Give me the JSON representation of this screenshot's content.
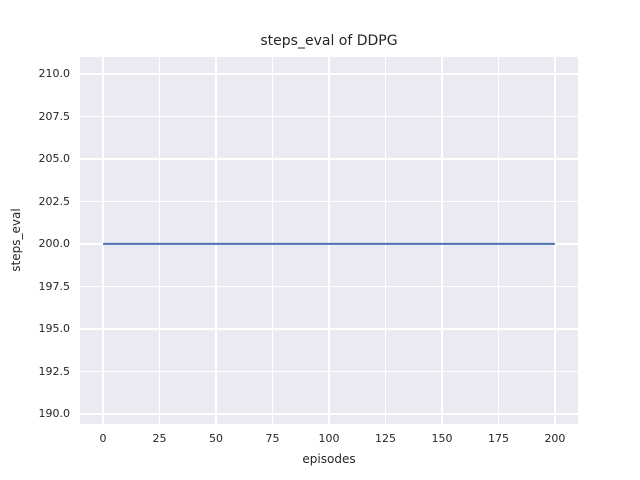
{
  "chart_data": {
    "type": "line",
    "title": "steps_eval of DDPG",
    "xlabel": "episodes",
    "ylabel": "steps_eval",
    "xlim": [
      -10.2,
      210.2
    ],
    "ylim": [
      189.4,
      211.0
    ],
    "xticks": [
      0,
      25,
      50,
      75,
      100,
      125,
      150,
      175,
      200
    ],
    "xticklabels": [
      "0",
      "25",
      "50",
      "75",
      "100",
      "125",
      "150",
      "175",
      "200"
    ],
    "yticks": [
      210.0,
      207.5,
      205.0,
      202.5,
      200.0,
      197.5,
      195.0,
      192.5,
      190.0
    ],
    "yticklabels": [
      "210.0",
      "207.5",
      "205.0",
      "202.5",
      "200.0",
      "197.5",
      "195.0",
      "192.5",
      "190.0"
    ],
    "grid": true,
    "legend": false,
    "plot_background_color": "#EAEAF2",
    "grid_color": "#FFFFFF",
    "figure_background_color": "#FFFFFF",
    "text_color": "#262626",
    "series": [
      {
        "name": "steps_eval",
        "color": "#4C72B0",
        "line_width": 2,
        "x": [
          0,
          200
        ],
        "y": [
          200,
          200
        ]
      }
    ]
  }
}
